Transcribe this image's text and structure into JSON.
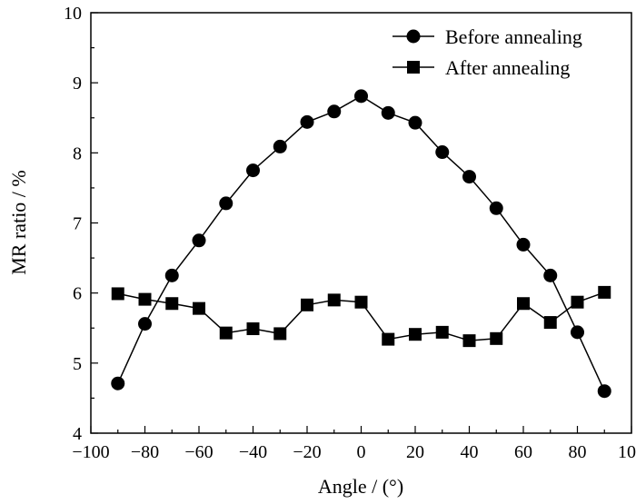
{
  "chart_data": {
    "type": "line",
    "title": "",
    "xlabel": "Angle / (°)",
    "ylabel": "MR ratio / %",
    "xlim": [
      -100,
      100
    ],
    "ylim": [
      4,
      10
    ],
    "xticks": [
      -100,
      -80,
      -60,
      -40,
      -20,
      0,
      20,
      40,
      60,
      80,
      100
    ],
    "yticks": [
      4,
      5,
      6,
      7,
      8,
      9,
      10
    ],
    "xtick_labels": [
      "−100",
      "−80",
      "−60",
      "−40",
      "−20",
      "0",
      "20",
      "40",
      "60",
      "80",
      "100"
    ],
    "ytick_labels": [
      "4",
      "5",
      "6",
      "7",
      "8",
      "9",
      "10"
    ],
    "grid": false,
    "legend_position": "top-right",
    "x": [
      -90,
      -80,
      -70,
      -60,
      -50,
      -40,
      -30,
      -20,
      -10,
      0,
      10,
      20,
      30,
      40,
      50,
      60,
      70,
      80,
      90
    ],
    "series": [
      {
        "name": "Before annealing",
        "marker": "circle",
        "values": [
          4.71,
          5.56,
          6.25,
          6.75,
          7.28,
          7.75,
          8.09,
          8.44,
          8.59,
          8.81,
          8.57,
          8.43,
          8.01,
          7.66,
          7.21,
          6.69,
          6.25,
          5.44,
          4.6
        ]
      },
      {
        "name": "After annealing",
        "marker": "square",
        "values": [
          5.99,
          5.91,
          5.85,
          5.78,
          5.43,
          5.49,
          5.42,
          5.83,
          5.9,
          5.87,
          5.34,
          5.41,
          5.44,
          5.32,
          5.35,
          5.85,
          5.58,
          5.87,
          6.01
        ]
      }
    ]
  }
}
